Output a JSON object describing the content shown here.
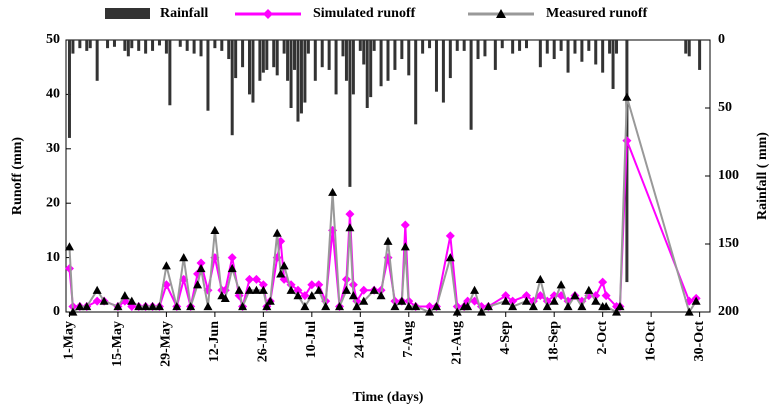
{
  "chart_data": {
    "type": "rainfall-runoff",
    "x_label": "Time (days)",
    "y_label": "Runoff (mm)",
    "y2_label": "Rainfall ( mm)",
    "xlim": [
      -1,
      185
    ],
    "xticks": [
      {
        "value": 0,
        "label": "1-May"
      },
      {
        "value": 14,
        "label": "15-May"
      },
      {
        "value": 28,
        "label": "29-May"
      },
      {
        "value": 42,
        "label": "12-Jun"
      },
      {
        "value": 56,
        "label": "26-Jun"
      },
      {
        "value": 70,
        "label": "10-Jul"
      },
      {
        "value": 84,
        "label": "24-Jul"
      },
      {
        "value": 98,
        "label": "7-Aug"
      },
      {
        "value": 112,
        "label": "21-Aug"
      },
      {
        "value": 126,
        "label": "4-Sep"
      },
      {
        "value": 140,
        "label": "18-Sep"
      },
      {
        "value": 154,
        "label": "2-Oct"
      },
      {
        "value": 168,
        "label": "16-Oct"
      },
      {
        "value": 182,
        "label": "30-Oct"
      }
    ],
    "ylim": [
      0,
      50
    ],
    "yticks": [
      0,
      10,
      20,
      30,
      40,
      50
    ],
    "y2lim": [
      0,
      200
    ],
    "y2ticks": [
      0,
      50,
      100,
      150,
      200
    ],
    "y2_inverted": true,
    "series": [
      {
        "name": "Rainfall",
        "kind": "bar",
        "axis": "y2",
        "color": "#333333",
        "x": [
          0,
          1,
          3,
          5,
          6,
          8,
          11,
          13,
          16,
          17,
          18,
          20,
          22,
          24,
          26,
          28,
          29,
          32,
          34,
          36,
          38,
          40,
          42,
          44,
          46,
          47,
          48,
          50,
          52,
          53,
          55,
          56,
          57,
          59,
          60,
          62,
          63,
          64,
          65,
          66,
          67,
          68,
          69,
          71,
          73,
          75,
          77,
          79,
          80,
          81,
          82,
          84,
          85,
          86,
          87,
          88,
          90,
          92,
          94,
          96,
          98,
          100,
          102,
          104,
          106,
          108,
          110,
          112,
          114,
          116,
          118,
          120,
          123,
          125,
          128,
          130,
          132,
          136,
          138,
          140,
          142,
          144,
          146,
          148,
          150,
          152,
          154,
          156,
          157,
          158,
          161,
          178,
          179,
          182
        ],
        "values": [
          72,
          10,
          6,
          8,
          6,
          30,
          6,
          5,
          8,
          12,
          6,
          8,
          10,
          8,
          4,
          10,
          48,
          5,
          8,
          10,
          12,
          52,
          6,
          8,
          14,
          70,
          28,
          20,
          40,
          46,
          30,
          24,
          22,
          20,
          26,
          10,
          30,
          50,
          22,
          60,
          54,
          46,
          10,
          30,
          20,
          22,
          40,
          12,
          30,
          108,
          40,
          8,
          18,
          50,
          42,
          8,
          34,
          30,
          22,
          14,
          26,
          62,
          10,
          6,
          38,
          46,
          28,
          8,
          8,
          66,
          14,
          12,
          22,
          6,
          10,
          8,
          6,
          20,
          10,
          14,
          8,
          24,
          10,
          16,
          8,
          18,
          24,
          10,
          36,
          10,
          178,
          10,
          12,
          22
        ]
      },
      {
        "name": "Simulated runoff",
        "kind": "line",
        "marker": "diamond",
        "color": "#ff00ff",
        "x": [
          0,
          1,
          3,
          5,
          8,
          10,
          14,
          16,
          18,
          20,
          22,
          24,
          26,
          28,
          31,
          33,
          35,
          37,
          38,
          40,
          42,
          44,
          45,
          47,
          49,
          50,
          52,
          54,
          56,
          57,
          58,
          60,
          61,
          62,
          64,
          66,
          68,
          70,
          72,
          74,
          76,
          78,
          80,
          81,
          82,
          83,
          85,
          88,
          90,
          92,
          94,
          96,
          97,
          98,
          100,
          104,
          106,
          110,
          112,
          114,
          115,
          117,
          119,
          121,
          126,
          128,
          132,
          134,
          136,
          138,
          140,
          142,
          144,
          146,
          148,
          150,
          152,
          154,
          155,
          158,
          159,
          161,
          179,
          181
        ],
        "values": [
          8,
          1,
          1,
          1,
          2,
          2,
          1,
          2,
          1,
          1,
          1,
          1,
          1,
          5,
          1,
          6,
          1,
          7,
          9,
          4,
          10,
          4,
          4,
          10,
          3,
          1,
          6,
          6,
          5,
          1,
          2,
          10,
          13,
          6,
          5,
          4,
          3,
          5,
          5,
          2,
          15,
          1,
          6,
          18,
          5,
          2,
          4,
          4,
          4,
          10,
          2,
          2,
          16,
          2,
          1,
          1,
          1,
          14,
          1,
          1,
          2,
          2,
          1,
          1,
          3,
          2,
          3,
          2,
          3,
          2,
          3,
          3,
          2,
          3,
          2,
          3,
          3,
          5.5,
          3,
          1,
          1,
          31.5,
          2,
          2.5
        ]
      },
      {
        "name": "Measured runoff",
        "kind": "line",
        "marker": "triangle",
        "color": "#999999",
        "marker_color": "#000000",
        "x": [
          0,
          1,
          3,
          5,
          8,
          10,
          14,
          16,
          18,
          20,
          22,
          24,
          26,
          28,
          31,
          33,
          35,
          37,
          38,
          40,
          42,
          44,
          45,
          47,
          49,
          50,
          52,
          54,
          56,
          57,
          58,
          60,
          61,
          62,
          64,
          66,
          68,
          70,
          72,
          74,
          76,
          78,
          80,
          81,
          82,
          83,
          85,
          88,
          90,
          92,
          94,
          96,
          97,
          98,
          100,
          104,
          106,
          110,
          112,
          114,
          115,
          117,
          119,
          121,
          126,
          128,
          132,
          134,
          136,
          138,
          140,
          142,
          144,
          146,
          148,
          150,
          152,
          154,
          155,
          158,
          159,
          161,
          179,
          181
        ],
        "values": [
          12,
          0,
          1,
          1,
          4,
          2,
          1,
          3,
          2,
          1,
          1,
          1,
          1,
          8.5,
          1,
          10,
          1,
          5,
          8,
          1,
          15,
          3,
          2.5,
          8,
          4,
          1,
          4,
          4,
          4,
          1,
          2,
          14.5,
          7,
          8.5,
          4,
          3,
          1,
          3,
          4,
          1,
          22,
          1,
          4,
          15.5,
          3,
          1,
          2,
          4,
          3,
          13,
          1,
          2,
          12,
          1,
          1,
          0,
          1,
          10,
          0,
          1,
          1,
          4,
          0,
          1,
          2,
          1,
          2,
          1,
          6,
          1,
          2,
          5,
          1,
          3,
          1,
          4,
          2,
          1,
          1,
          0,
          1,
          39.5,
          0,
          2
        ]
      }
    ]
  }
}
